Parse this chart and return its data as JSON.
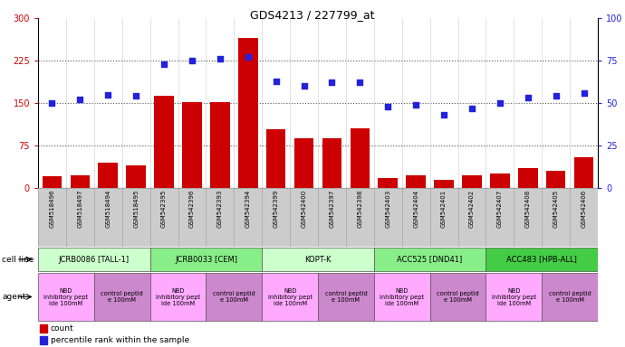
{
  "title": "GDS4213 / 227799_at",
  "samples": [
    "GSM518496",
    "GSM518497",
    "GSM518494",
    "GSM518495",
    "GSM542395",
    "GSM542396",
    "GSM542393",
    "GSM542394",
    "GSM542399",
    "GSM542400",
    "GSM542397",
    "GSM542398",
    "GSM542403",
    "GSM542404",
    "GSM542401",
    "GSM542402",
    "GSM542407",
    "GSM542408",
    "GSM542405",
    "GSM542406"
  ],
  "counts": [
    20,
    22,
    45,
    40,
    163,
    152,
    152,
    265,
    103,
    88,
    88,
    105,
    18,
    22,
    14,
    22,
    25,
    35,
    30,
    55
  ],
  "percentiles": [
    50,
    52,
    55,
    54,
    73,
    75,
    76,
    77,
    63,
    60,
    62,
    62,
    48,
    49,
    43,
    47,
    50,
    53,
    54,
    56
  ],
  "ylim_left": [
    0,
    300
  ],
  "ylim_right": [
    0,
    100
  ],
  "yticks_left": [
    0,
    75,
    150,
    225,
    300
  ],
  "yticks_right": [
    0,
    25,
    50,
    75,
    100
  ],
  "bar_color": "#cc0000",
  "scatter_color": "#2222dd",
  "grid_color": "#555555",
  "cell_lines": [
    {
      "label": "JCRB0086 [TALL-1]",
      "start": 0,
      "end": 4,
      "color": "#ccffcc"
    },
    {
      "label": "JCRB0033 [CEM]",
      "start": 4,
      "end": 8,
      "color": "#88ee88"
    },
    {
      "label": "KOPT-K",
      "start": 8,
      "end": 12,
      "color": "#ccffcc"
    },
    {
      "label": "ACC525 [DND41]",
      "start": 12,
      "end": 16,
      "color": "#88ee88"
    },
    {
      "label": "ACC483 [HPB-ALL]",
      "start": 16,
      "end": 20,
      "color": "#44cc44"
    }
  ],
  "agents": [
    {
      "label": "NBD\ninhibitory pept\nide 100mM",
      "start": 0,
      "end": 2,
      "color": "#ffaaff"
    },
    {
      "label": "control peptid\ne 100mM",
      "start": 2,
      "end": 4,
      "color": "#cc88cc"
    },
    {
      "label": "NBD\ninhibitory pept\nide 100mM",
      "start": 4,
      "end": 6,
      "color": "#ffaaff"
    },
    {
      "label": "control peptid\ne 100mM",
      "start": 6,
      "end": 8,
      "color": "#cc88cc"
    },
    {
      "label": "NBD\ninhibitory pept\nide 100mM",
      "start": 8,
      "end": 10,
      "color": "#ffaaff"
    },
    {
      "label": "control peptid\ne 100mM",
      "start": 10,
      "end": 12,
      "color": "#cc88cc"
    },
    {
      "label": "NBD\ninhibitory pept\nide 100mM",
      "start": 12,
      "end": 14,
      "color": "#ffaaff"
    },
    {
      "label": "control peptid\ne 100mM",
      "start": 14,
      "end": 16,
      "color": "#cc88cc"
    },
    {
      "label": "NBD\ninhibitory pept\nide 100mM",
      "start": 16,
      "end": 18,
      "color": "#ffaaff"
    },
    {
      "label": "control peptid\ne 100mM",
      "start": 18,
      "end": 20,
      "color": "#cc88cc"
    }
  ],
  "legend_count_color": "#cc0000",
  "legend_pct_color": "#2222dd",
  "background_color": "#ffffff",
  "plot_bg_color": "#ffffff",
  "tick_area_color": "#cccccc"
}
